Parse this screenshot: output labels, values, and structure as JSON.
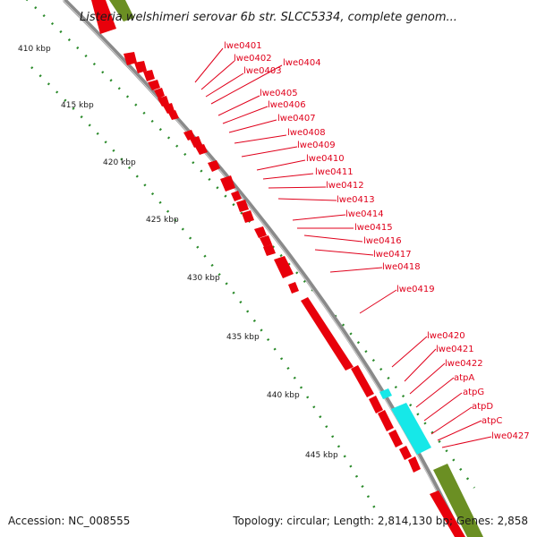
{
  "title": "Listeria welshimeri serovar 6b str. SLCC5334, complete genom...",
  "footer": {
    "accession": "Accession: NC_008555",
    "summary": "Topology: circular; Length: 2,814,130 bp; Genes: 2,858"
  },
  "colors": {
    "gene_red": "#e8000b",
    "cyan": "#16e8e8",
    "olive": "#6b8f23",
    "backbone": "#8a8a8a",
    "tick_green": "#2a8a2a",
    "label_red": "#e0001b"
  },
  "kbp_markers": [
    {
      "label": "410 kbp"
    },
    {
      "label": "415 kbp"
    },
    {
      "label": "420 kbp"
    },
    {
      "label": "425 kbp"
    },
    {
      "label": "430 kbp"
    },
    {
      "label": "435 kbp"
    },
    {
      "label": "440 kbp"
    },
    {
      "label": "445 kbp"
    }
  ],
  "gene_labels": [
    {
      "label": "lwe0401"
    },
    {
      "label": "lwe0402"
    },
    {
      "label": "lwe0403"
    },
    {
      "label": "lwe0404"
    },
    {
      "label": "lwe0405"
    },
    {
      "label": "lwe0406"
    },
    {
      "label": "lwe0407"
    },
    {
      "label": "lwe0408"
    },
    {
      "label": "lwe0409"
    },
    {
      "label": "lwe0410"
    },
    {
      "label": "lwe0411"
    },
    {
      "label": "lwe0412"
    },
    {
      "label": "lwe0413"
    },
    {
      "label": "lwe0414"
    },
    {
      "label": "lwe0415"
    },
    {
      "label": "lwe0416"
    },
    {
      "label": "lwe0417"
    },
    {
      "label": "lwe0418"
    },
    {
      "label": "lwe0419"
    },
    {
      "label": "lwe0420"
    },
    {
      "label": "lwe0421"
    },
    {
      "label": "lwe0422"
    },
    {
      "label": "atpA"
    },
    {
      "label": "atpG"
    },
    {
      "label": "atpD"
    },
    {
      "label": "atpC"
    },
    {
      "label": "lwe0427"
    }
  ]
}
